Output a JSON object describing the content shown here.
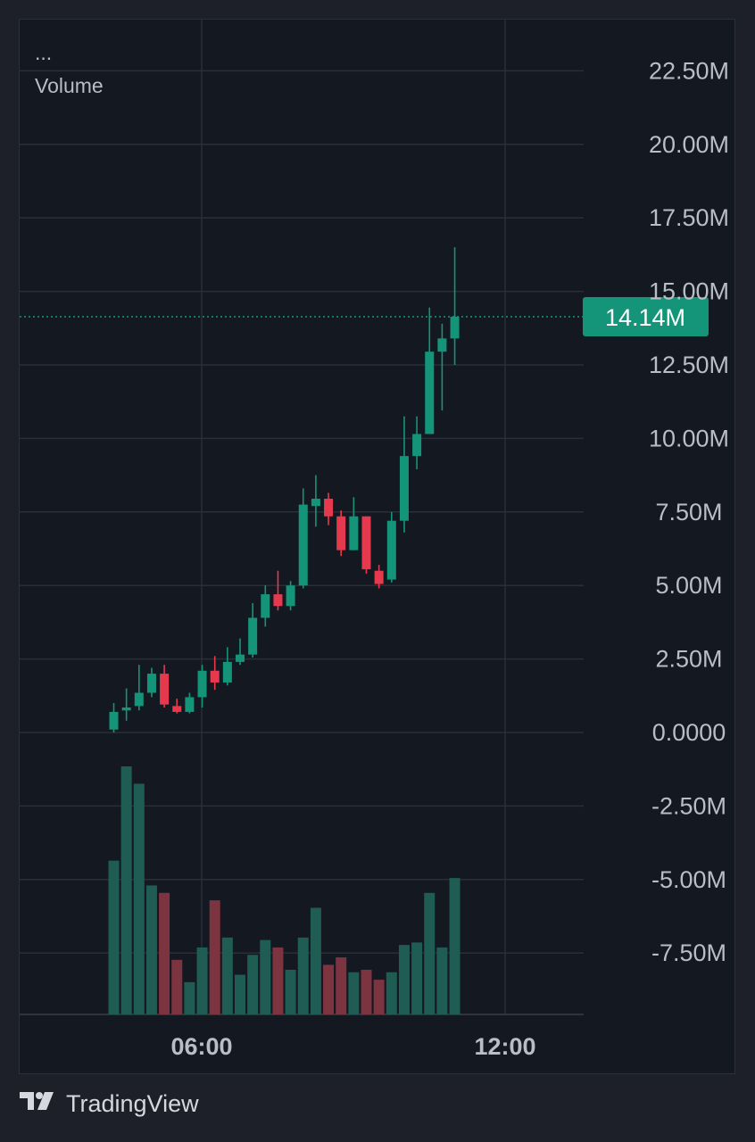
{
  "legend": {
    "menu": "...",
    "label": "Volume"
  },
  "footer": {
    "brand": "TradingView"
  },
  "colors": {
    "up": "#14957a",
    "down": "#e5394e",
    "vol_up": "#1f5c54",
    "vol_down": "#7b3440",
    "grid": "#2a2e39",
    "axis_text": "#b8bdc8",
    "price_line": "#14957a"
  },
  "chart_data": {
    "type": "candlestick",
    "y_axis": {
      "ticks": [
        "22.50M",
        "20.00M",
        "17.50M",
        "15.00M",
        "12.50M",
        "10.00M",
        "7.50M",
        "5.00M",
        "2.50M",
        "0.0000",
        "-2.50M",
        "-5.00M",
        "-7.50M"
      ],
      "range": [
        -9.5,
        24.3
      ],
      "unit": "M"
    },
    "x_axis": {
      "ticks": [
        "06:00",
        "12:00"
      ]
    },
    "current_price": {
      "value": 14.14,
      "label": "14.14M"
    },
    "candles": [
      {
        "o": 0.1,
        "h": 1.0,
        "l": 0.0,
        "c": 0.7
      },
      {
        "o": 0.75,
        "h": 1.5,
        "l": 0.4,
        "c": 0.85
      },
      {
        "o": 0.9,
        "h": 2.3,
        "l": 0.75,
        "c": 1.35
      },
      {
        "o": 1.35,
        "h": 2.2,
        "l": 1.2,
        "c": 2.0
      },
      {
        "o": 2.0,
        "h": 2.3,
        "l": 0.85,
        "c": 0.95
      },
      {
        "o": 0.9,
        "h": 1.15,
        "l": 0.65,
        "c": 0.7
      },
      {
        "o": 0.7,
        "h": 1.35,
        "l": 0.65,
        "c": 1.2
      },
      {
        "o": 1.2,
        "h": 2.3,
        "l": 0.85,
        "c": 2.1
      },
      {
        "o": 2.1,
        "h": 2.6,
        "l": 1.45,
        "c": 1.7
      },
      {
        "o": 1.7,
        "h": 2.9,
        "l": 1.6,
        "c": 2.4
      },
      {
        "o": 2.4,
        "h": 3.2,
        "l": 2.3,
        "c": 2.65
      },
      {
        "o": 2.65,
        "h": 4.4,
        "l": 2.55,
        "c": 3.9
      },
      {
        "o": 3.9,
        "h": 5.0,
        "l": 3.6,
        "c": 4.7
      },
      {
        "o": 4.7,
        "h": 5.5,
        "l": 4.15,
        "c": 4.3
      },
      {
        "o": 4.3,
        "h": 5.15,
        "l": 4.15,
        "c": 5.0
      },
      {
        "o": 5.0,
        "h": 8.3,
        "l": 4.9,
        "c": 7.75
      },
      {
        "o": 7.7,
        "h": 8.75,
        "l": 7.0,
        "c": 7.95
      },
      {
        "o": 7.95,
        "h": 8.15,
        "l": 7.05,
        "c": 7.35
      },
      {
        "o": 7.35,
        "h": 7.55,
        "l": 6.0,
        "c": 6.2
      },
      {
        "o": 6.2,
        "h": 8.0,
        "l": 6.2,
        "c": 7.35
      },
      {
        "o": 7.35,
        "h": 7.35,
        "l": 5.4,
        "c": 5.55
      },
      {
        "o": 5.5,
        "h": 5.7,
        "l": 4.9,
        "c": 5.05
      },
      {
        "o": 5.2,
        "h": 7.5,
        "l": 5.1,
        "c": 7.2
      },
      {
        "o": 7.2,
        "h": 10.75,
        "l": 6.8,
        "c": 9.4
      },
      {
        "o": 9.4,
        "h": 10.75,
        "l": 8.95,
        "c": 10.15
      },
      {
        "o": 10.15,
        "h": 14.45,
        "l": 10.15,
        "c": 12.95
      },
      {
        "o": 12.95,
        "h": 13.9,
        "l": 10.95,
        "c": 13.4
      },
      {
        "o": 13.4,
        "h": 16.5,
        "l": 12.5,
        "c": 14.14
      }
    ],
    "volume_scale_max": 1,
    "volumes": [
      0.62,
      1.0,
      0.93,
      0.52,
      0.49,
      0.22,
      0.13,
      0.27,
      0.46,
      0.31,
      0.16,
      0.24,
      0.3,
      0.27,
      0.18,
      0.31,
      0.43,
      0.2,
      0.23,
      0.17,
      0.18,
      0.14,
      0.17,
      0.28,
      0.29,
      0.49,
      0.27,
      0.55
    ]
  }
}
